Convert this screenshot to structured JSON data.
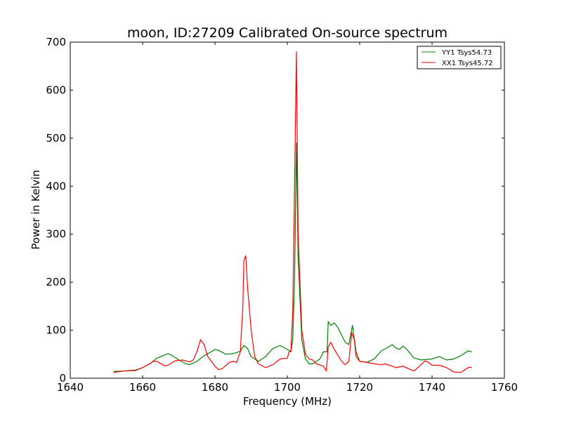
{
  "chart_data": {
    "type": "line",
    "title": "moon, ID:27209 Calibrated On-source spectrum",
    "xlabel": "Frequency (MHz)",
    "ylabel": "Power in Kelvin",
    "xlim": [
      1640,
      1760
    ],
    "ylim": [
      0,
      700
    ],
    "xticks": [
      1640,
      1660,
      1680,
      1700,
      1720,
      1740,
      1760
    ],
    "yticks": [
      0,
      100,
      200,
      300,
      400,
      500,
      600,
      700
    ],
    "grid": false,
    "legend_position": "top-right",
    "series": [
      {
        "name": "YY1 Tsys54.73",
        "color": "#008000",
        "x": [
          1652,
          1655,
          1658,
          1660,
          1662,
          1664,
          1665,
          1667,
          1668,
          1670,
          1672,
          1673,
          1675,
          1677,
          1679,
          1680,
          1681,
          1683,
          1685,
          1687,
          1688,
          1689,
          1690,
          1692,
          1694,
          1696,
          1698,
          1700,
          1701,
          1701.5,
          1702,
          1702.5,
          1703,
          1704,
          1705,
          1706,
          1707,
          1709,
          1710,
          1711,
          1711.3,
          1712,
          1713,
          1714,
          1716,
          1717,
          1718,
          1719,
          1720,
          1722,
          1724,
          1726,
          1728,
          1729,
          1730,
          1731,
          1732,
          1733,
          1735,
          1737,
          1740,
          1742,
          1744,
          1746,
          1748,
          1750,
          1751
        ],
        "y": [
          14,
          15,
          17,
          22,
          30,
          42,
          45,
          51,
          48,
          38,
          30,
          28,
          35,
          47,
          55,
          60,
          58,
          50,
          51,
          56,
          68,
          62,
          45,
          35,
          45,
          62,
          68,
          60,
          55,
          80,
          200,
          490,
          250,
          80,
          40,
          30,
          30,
          40,
          55,
          55,
          118,
          110,
          115,
          105,
          75,
          70,
          110,
          55,
          35,
          33,
          40,
          57,
          65,
          70,
          63,
          60,
          67,
          60,
          42,
          38,
          40,
          45,
          38,
          40,
          47,
          57,
          55
        ]
      },
      {
        "name": "XX1 Tsys45.72",
        "color": "#ff0000",
        "x": [
          1652,
          1655,
          1658,
          1660,
          1662,
          1663,
          1664,
          1666,
          1667,
          1669,
          1671,
          1673,
          1674,
          1675,
          1676,
          1677,
          1678,
          1680,
          1681,
          1682,
          1684,
          1685,
          1686,
          1687,
          1687.7,
          1688,
          1688.5,
          1689,
          1690,
          1691,
          1692,
          1694,
          1696,
          1698,
          1700,
          1700.5,
          1701,
          1701.5,
          1702,
          1702.5,
          1703,
          1704,
          1705,
          1706,
          1707,
          1708,
          1710,
          1710.8,
          1711.3,
          1712,
          1713,
          1715,
          1716,
          1717,
          1717.8,
          1718.5,
          1719,
          1720,
          1722,
          1724,
          1726,
          1727,
          1729,
          1730,
          1732,
          1734,
          1735,
          1737,
          1738,
          1739,
          1740,
          1742,
          1744,
          1746,
          1748,
          1750,
          1751
        ],
        "y": [
          12,
          15,
          16,
          22,
          30,
          35,
          35,
          26,
          27,
          36,
          38,
          34,
          38,
          55,
          80,
          70,
          45,
          25,
          18,
          20,
          33,
          35,
          33,
          55,
          150,
          245,
          255,
          190,
          100,
          45,
          30,
          22,
          28,
          40,
          42,
          55,
          55,
          140,
          400,
          680,
          300,
          100,
          50,
          40,
          38,
          30,
          25,
          15,
          65,
          75,
          60,
          35,
          28,
          35,
          95,
          80,
          45,
          35,
          33,
          30,
          28,
          30,
          25,
          22,
          25,
          18,
          15,
          28,
          36,
          33,
          27,
          27,
          22,
          13,
          12,
          22,
          23
        ]
      }
    ]
  }
}
